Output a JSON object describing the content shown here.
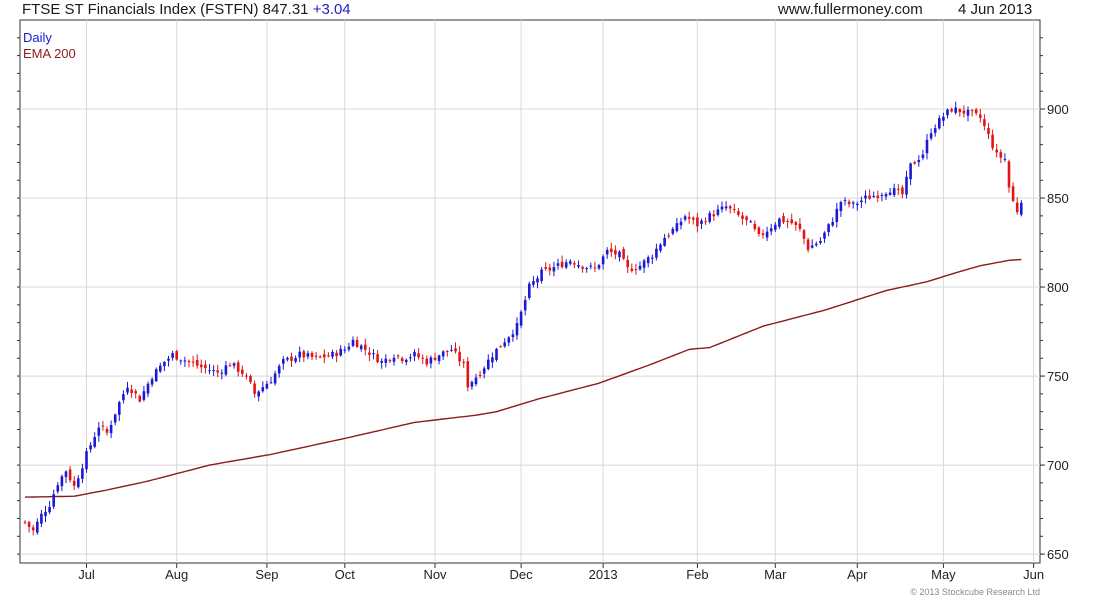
{
  "header": {
    "title": "FTSE ST Financials Index (FSTFN)",
    "last": "847.31",
    "change": "+3.04",
    "site": "www.fullermoney.com",
    "date": "4 Jun 2013"
  },
  "legend": {
    "daily": "Daily",
    "ema": "EMA 200"
  },
  "copyright": "© 2013 Stockcube Research Ltd",
  "colors": {
    "up": "#1a1ad6",
    "down": "#e01515",
    "ema": "#8b1c1c",
    "grid": "#d8d8d8",
    "axis": "#333333"
  },
  "chart_data": {
    "type": "candlestick",
    "ylim": [
      645,
      950
    ],
    "y_ticks": [
      650,
      700,
      750,
      800,
      850,
      900
    ],
    "x_labels": [
      {
        "label": "Jul",
        "index": 15
      },
      {
        "label": "Aug",
        "index": 37
      },
      {
        "label": "Sep",
        "index": 59
      },
      {
        "label": "Oct",
        "index": 78
      },
      {
        "label": "Nov",
        "index": 100
      },
      {
        "label": "Dec",
        "index": 121
      },
      {
        "label": "2013",
        "index": 141
      },
      {
        "label": "Feb",
        "index": 164
      },
      {
        "label": "Mar",
        "index": 183
      },
      {
        "label": "Apr",
        "index": 203
      },
      {
        "label": "May",
        "index": 224
      },
      {
        "label": "Jun",
        "index": 246
      }
    ],
    "series": [
      {
        "name": "Daily",
        "anchors": [
          [
            0,
            668
          ],
          [
            2,
            663
          ],
          [
            4,
            672
          ],
          [
            6,
            678
          ],
          [
            8,
            690
          ],
          [
            10,
            697
          ],
          [
            12,
            688
          ],
          [
            15,
            706
          ],
          [
            18,
            722
          ],
          [
            20,
            718
          ],
          [
            23,
            735
          ],
          [
            25,
            745
          ],
          [
            28,
            737
          ],
          [
            31,
            750
          ],
          [
            34,
            758
          ],
          [
            36,
            762
          ],
          [
            40,
            758
          ],
          [
            43,
            755
          ],
          [
            47,
            752
          ],
          [
            50,
            757
          ],
          [
            53,
            752
          ],
          [
            55,
            745
          ],
          [
            56,
            740
          ],
          [
            60,
            748
          ],
          [
            63,
            758
          ],
          [
            67,
            762
          ],
          [
            71,
            760
          ],
          [
            75,
            762
          ],
          [
            78,
            765
          ],
          [
            80,
            770
          ],
          [
            83,
            765
          ],
          [
            87,
            758
          ],
          [
            90,
            762
          ],
          [
            92,
            760
          ],
          [
            95,
            762
          ],
          [
            98,
            758
          ],
          [
            101,
            762
          ],
          [
            104,
            765
          ],
          [
            107,
            756
          ],
          [
            108,
            745
          ],
          [
            111,
            752
          ],
          [
            114,
            762
          ],
          [
            117,
            770
          ],
          [
            120,
            778
          ],
          [
            123,
            800
          ],
          [
            126,
            808
          ],
          [
            130,
            812
          ],
          [
            133,
            815
          ],
          [
            136,
            812
          ],
          [
            139,
            810
          ],
          [
            142,
            820
          ],
          [
            145,
            818
          ],
          [
            147,
            810
          ],
          [
            150,
            812
          ],
          [
            153,
            818
          ],
          [
            156,
            828
          ],
          [
            159,
            834
          ],
          [
            161,
            840
          ],
          [
            164,
            835
          ],
          [
            167,
            840
          ],
          [
            171,
            845
          ],
          [
            174,
            840
          ],
          [
            177,
            835
          ],
          [
            179,
            828
          ],
          [
            181,
            832
          ],
          [
            184,
            838
          ],
          [
            187,
            836
          ],
          [
            189,
            832
          ],
          [
            191,
            822
          ],
          [
            194,
            826
          ],
          [
            197,
            838
          ],
          [
            199,
            848
          ],
          [
            202,
            846
          ],
          [
            205,
            850
          ],
          [
            208,
            852
          ],
          [
            211,
            855
          ],
          [
            214,
            852
          ],
          [
            216,
            868
          ],
          [
            219,
            875
          ],
          [
            221,
            888
          ],
          [
            224,
            896
          ],
          [
            226,
            900
          ],
          [
            228,
            899
          ],
          [
            231,
            897
          ],
          [
            233,
            895
          ],
          [
            235,
            885
          ],
          [
            237,
            874
          ],
          [
            239,
            872
          ],
          [
            240,
            856
          ],
          [
            241,
            848
          ],
          [
            242,
            843
          ],
          [
            243,
            847
          ]
        ],
        "last_close": 847.31
      },
      {
        "name": "EMA 200",
        "anchors": [
          [
            0,
            682
          ],
          [
            12,
            682.5
          ],
          [
            20,
            686
          ],
          [
            30,
            691
          ],
          [
            45,
            700
          ],
          [
            60,
            706
          ],
          [
            80,
            716
          ],
          [
            95,
            724
          ],
          [
            110,
            728
          ],
          [
            115,
            730
          ],
          [
            125,
            737
          ],
          [
            140,
            746
          ],
          [
            152,
            756
          ],
          [
            162,
            765
          ],
          [
            167,
            766
          ],
          [
            180,
            778
          ],
          [
            195,
            787
          ],
          [
            210,
            798
          ],
          [
            220,
            803
          ],
          [
            227,
            808
          ],
          [
            233,
            812
          ],
          [
            240,
            815
          ],
          [
            243,
            815.5
          ]
        ]
      }
    ]
  }
}
